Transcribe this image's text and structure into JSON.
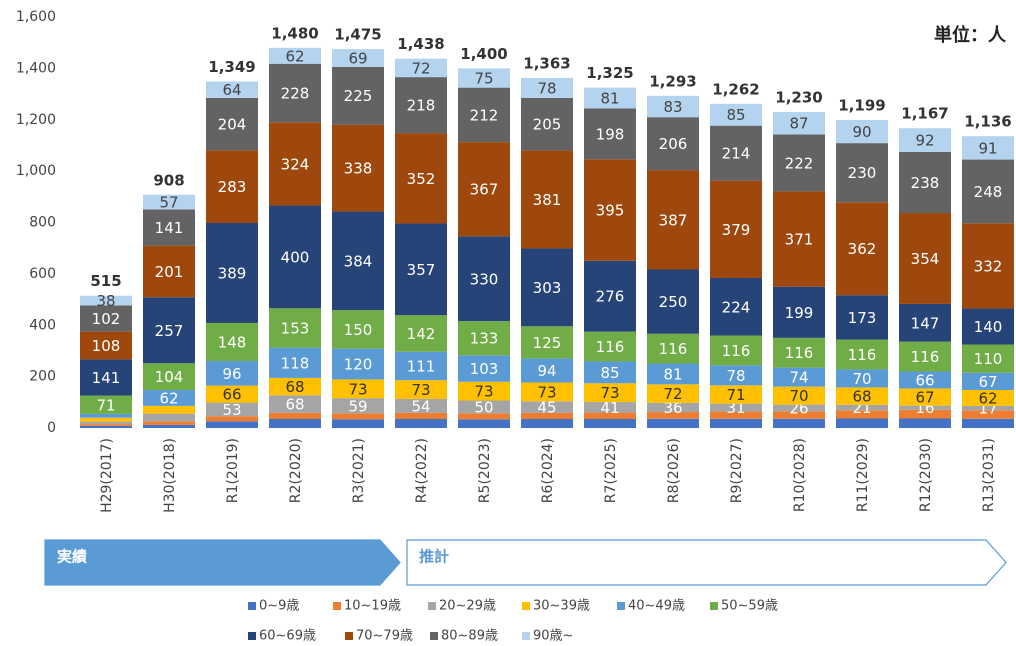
{
  "chart_data": {
    "type": "stacked_bar",
    "unit": "単位：人",
    "categories": [
      "H29(2017)",
      "H30(2018)",
      "R1(2019)",
      "R2(2020)",
      "R3(2021)",
      "R4(2022)",
      "R5(2023)",
      "R6(2024)",
      "R7(2025)",
      "R8(2026)",
      "R9(2027)",
      "R10(2028)",
      "R11(2029)",
      "R12(2030)",
      "R13(2031)"
    ],
    "series": [
      {
        "name": "0~9歳",
        "color": "#4472c4",
        "values": [
          8,
          12,
          26,
          35,
          34,
          35,
          34,
          35,
          35,
          36,
          36,
          36,
          37,
          37,
          36
        ]
      },
      {
        "name": "10~19歳",
        "color": "#ed7d31",
        "values": [
          7,
          14,
          20,
          24,
          23,
          24,
          23,
          24,
          25,
          26,
          28,
          29,
          32,
          34,
          33
        ]
      },
      {
        "name": "20~29歳",
        "color": "#a5a5a5",
        "label_color": "#ffffff",
        "label_from": 2,
        "values": [
          10,
          30,
          53,
          68,
          59,
          54,
          50,
          45,
          41,
          36,
          31,
          26,
          21,
          16,
          17
        ]
      },
      {
        "name": "30~39歳",
        "color": "#ffc000",
        "label_color": "#333333",
        "label_from": 2,
        "values": [
          15,
          30,
          66,
          68,
          73,
          73,
          73,
          73,
          73,
          72,
          71,
          70,
          68,
          67,
          62
        ]
      },
      {
        "name": "40~49歳",
        "color": "#5b9bd5",
        "label_color": "#ffffff",
        "label_from": 1,
        "values": [
          15,
          62,
          96,
          118,
          120,
          111,
          103,
          94,
          85,
          81,
          78,
          74,
          70,
          66,
          67
        ]
      },
      {
        "name": "50~59歳",
        "color": "#70ad47",
        "label_color": "#ffffff",
        "label_from": 0,
        "values": [
          71,
          104,
          148,
          153,
          150,
          142,
          133,
          125,
          116,
          116,
          116,
          116,
          116,
          116,
          110
        ]
      },
      {
        "name": "60~69歳",
        "color": "#264478",
        "label_color": "#ffffff",
        "label_from": 0,
        "values": [
          141,
          257,
          389,
          400,
          384,
          357,
          330,
          303,
          276,
          250,
          224,
          199,
          173,
          147,
          140
        ]
      },
      {
        "name": "70~79歳",
        "color": "#9e480e",
        "label_color": "#ffffff",
        "label_from": 0,
        "values": [
          108,
          201,
          283,
          324,
          338,
          352,
          367,
          381,
          395,
          387,
          379,
          371,
          362,
          354,
          332
        ]
      },
      {
        "name": "80~89歳",
        "color": "#636363",
        "label_color": "#ffffff",
        "label_from": 0,
        "values": [
          102,
          141,
          204,
          228,
          225,
          218,
          212,
          205,
          198,
          206,
          214,
          222,
          230,
          238,
          248
        ]
      },
      {
        "name": "90歳~",
        "color": "#b4d3ee",
        "label_color": "#444444",
        "label_from": 0,
        "values": [
          38,
          57,
          64,
          62,
          69,
          72,
          75,
          78,
          81,
          83,
          85,
          87,
          90,
          92,
          91
        ]
      }
    ],
    "totals": [
      515,
      908,
      1349,
      1480,
      1475,
      1438,
      1400,
      1363,
      1325,
      1293,
      1262,
      1230,
      1199,
      1167,
      1136
    ],
    "total_labels": [
      "515",
      "908",
      "1,349",
      "1,480",
      "1,475",
      "1,438",
      "1,400",
      "1,363",
      "1,325",
      "1,293",
      "1,262",
      "1,230",
      "1,199",
      "1,167",
      "1,136"
    ],
    "phases": [
      {
        "label": "実績",
        "from": 0,
        "to": 1
      },
      {
        "label": "推計",
        "from": 2,
        "to": 14
      }
    ],
    "ylim": [
      0,
      1600
    ],
    "yticks": [
      0,
      200,
      400,
      600,
      800,
      {
        "value": 1000,
        "label": "1,000"
      },
      {
        "value": 1200,
        "label": "1,200"
      },
      {
        "value": 1400,
        "label": "1,400"
      },
      {
        "value": 1600,
        "label": "1,600"
      }
    ],
    "grid": false
  }
}
